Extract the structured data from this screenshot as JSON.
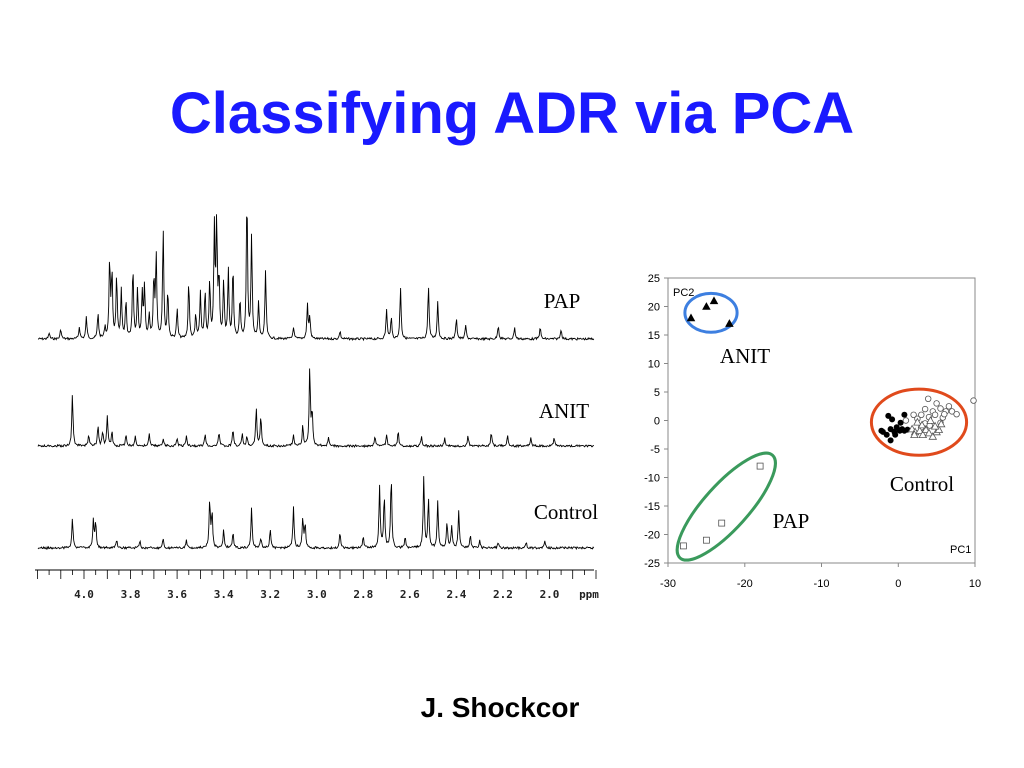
{
  "slide": {
    "title": "Classifying ADR via PCA",
    "author": "J. Shockcor"
  },
  "chart_data": [
    {
      "type": "line",
      "subtype": "nmr-spectra-stack",
      "x_axis": {
        "unit": "ppm",
        "ticks": [
          "4.0",
          "3.8",
          "3.6",
          "3.4",
          "3.2",
          "3.0",
          "2.8",
          "2.6",
          "2.4",
          "2.2",
          "2.0"
        ],
        "direction": "decreasing-left-to-right",
        "xlim": [
          4.2,
          1.8
        ]
      },
      "series": [
        {
          "name": "PAP",
          "peaks": [
            [
              4.15,
              6
            ],
            [
              4.1,
              10
            ],
            [
              4.02,
              12
            ],
            [
              3.99,
              22
            ],
            [
              3.94,
              26
            ],
            [
              3.91,
              12
            ],
            [
              3.89,
              80
            ],
            [
              3.88,
              66
            ],
            [
              3.86,
              62
            ],
            [
              3.84,
              48
            ],
            [
              3.82,
              38
            ],
            [
              3.79,
              72
            ],
            [
              3.77,
              50
            ],
            [
              3.75,
              46
            ],
            [
              3.74,
              52
            ],
            [
              3.72,
              24
            ],
            [
              3.7,
              62
            ],
            [
              3.69,
              84
            ],
            [
              3.66,
              110
            ],
            [
              3.64,
              48
            ],
            [
              3.6,
              30
            ],
            [
              3.55,
              58
            ],
            [
              3.52,
              24
            ],
            [
              3.5,
              46
            ],
            [
              3.48,
              46
            ],
            [
              3.46,
              56
            ],
            [
              3.44,
              110
            ],
            [
              3.43,
              116
            ],
            [
              3.42,
              58
            ],
            [
              3.4,
              56
            ],
            [
              3.38,
              68
            ],
            [
              3.36,
              72
            ],
            [
              3.33,
              40
            ],
            [
              3.3,
              146
            ],
            [
              3.28,
              102
            ],
            [
              3.25,
              36
            ],
            [
              3.22,
              68
            ],
            [
              3.1,
              12
            ],
            [
              3.04,
              34
            ],
            [
              3.03,
              22
            ],
            [
              2.9,
              8
            ],
            [
              2.7,
              30
            ],
            [
              2.68,
              22
            ],
            [
              2.64,
              52
            ],
            [
              2.52,
              54
            ],
            [
              2.48,
              38
            ],
            [
              2.4,
              22
            ],
            [
              2.36,
              14
            ],
            [
              2.22,
              14
            ],
            [
              2.15,
              12
            ],
            [
              2.04,
              12
            ],
            [
              1.95,
              10
            ]
          ]
        },
        {
          "name": "ANIT",
          "peaks": [
            [
              4.05,
              52
            ],
            [
              3.98,
              12
            ],
            [
              3.94,
              20
            ],
            [
              3.92,
              14
            ],
            [
              3.9,
              30
            ],
            [
              3.88,
              14
            ],
            [
              3.82,
              12
            ],
            [
              3.78,
              10
            ],
            [
              3.72,
              12
            ],
            [
              3.66,
              8
            ],
            [
              3.6,
              8
            ],
            [
              3.56,
              10
            ],
            [
              3.48,
              12
            ],
            [
              3.42,
              14
            ],
            [
              3.36,
              16
            ],
            [
              3.32,
              12
            ],
            [
              3.3,
              10
            ],
            [
              3.26,
              38
            ],
            [
              3.24,
              30
            ],
            [
              3.1,
              12
            ],
            [
              3.06,
              20
            ],
            [
              3.03,
              78
            ],
            [
              3.02,
              34
            ],
            [
              2.95,
              8
            ],
            [
              2.75,
              10
            ],
            [
              2.7,
              12
            ],
            [
              2.65,
              14
            ],
            [
              2.55,
              10
            ],
            [
              2.45,
              8
            ],
            [
              2.35,
              10
            ],
            [
              2.25,
              14
            ],
            [
              2.18,
              10
            ],
            [
              2.08,
              8
            ],
            [
              1.98,
              8
            ]
          ]
        },
        {
          "name": "Control",
          "peaks": [
            [
              4.05,
              30
            ],
            [
              3.96,
              28
            ],
            [
              3.95,
              26
            ],
            [
              3.86,
              8
            ],
            [
              3.76,
              8
            ],
            [
              3.66,
              10
            ],
            [
              3.56,
              8
            ],
            [
              3.46,
              48
            ],
            [
              3.45,
              36
            ],
            [
              3.4,
              18
            ],
            [
              3.36,
              16
            ],
            [
              3.28,
              40
            ],
            [
              3.24,
              10
            ],
            [
              3.2,
              18
            ],
            [
              3.1,
              42
            ],
            [
              3.06,
              30
            ],
            [
              3.05,
              24
            ],
            [
              2.9,
              16
            ],
            [
              2.8,
              12
            ],
            [
              2.73,
              62
            ],
            [
              2.71,
              52
            ],
            [
              2.68,
              72
            ],
            [
              2.62,
              12
            ],
            [
              2.54,
              72
            ],
            [
              2.52,
              50
            ],
            [
              2.48,
              48
            ],
            [
              2.44,
              26
            ],
            [
              2.42,
              22
            ],
            [
              2.39,
              38
            ],
            [
              2.34,
              12
            ],
            [
              2.3,
              8
            ],
            [
              2.22,
              6
            ],
            [
              2.1,
              6
            ],
            [
              2.02,
              6
            ]
          ]
        }
      ]
    },
    {
      "type": "scatter",
      "xlabel": "PC1",
      "ylabel": "PC2",
      "xlim": [
        -30,
        10
      ],
      "ylim": [
        -25,
        25
      ],
      "xticks": [
        -30,
        -20,
        -10,
        0,
        10
      ],
      "yticks": [
        25,
        20,
        15,
        10,
        5,
        0,
        -5,
        -10,
        -15,
        -20,
        -25
      ],
      "series": [
        {
          "name": "ANIT",
          "marker": "filled-triangle",
          "color": "#000000",
          "points": [
            [
              -27,
              18
            ],
            [
              -25,
              20
            ],
            [
              -24,
              21
            ],
            [
              -22,
              17
            ]
          ]
        },
        {
          "name": "PAP",
          "marker": "open-square",
          "color": "#555555",
          "points": [
            [
              -28,
              -22
            ],
            [
              -25,
              -21
            ],
            [
              -23,
              -18
            ],
            [
              -18,
              -8
            ]
          ]
        },
        {
          "name": "Control",
          "marker": "filled-circle",
          "color": "#000000",
          "points": [
            [
              -2,
              -2
            ],
            [
              -1.5,
              -2.5
            ],
            [
              -2.2,
              -1.8
            ],
            [
              -1,
              -1.5
            ],
            [
              -1.3,
              0.8
            ],
            [
              -0.5,
              -2
            ],
            [
              -0.4,
              -2.5
            ],
            [
              -0.2,
              -1.2
            ],
            [
              0.2,
              -1.8
            ],
            [
              0.5,
              -1.5
            ],
            [
              0.8,
              -1.8
            ],
            [
              1.2,
              -1.6
            ],
            [
              -1,
              -3.5
            ],
            [
              0.3,
              -0.4
            ],
            [
              0.8,
              1
            ],
            [
              -0.8,
              0.2
            ]
          ]
        },
        {
          "name": "Control",
          "marker": "open-circle",
          "color": "#555555",
          "points": [
            [
              1,
              0
            ],
            [
              2,
              1
            ],
            [
              2.5,
              0.3
            ],
            [
              3,
              1
            ],
            [
              3.5,
              -0.5
            ],
            [
              4,
              0.6
            ],
            [
              4.5,
              1.6
            ],
            [
              5,
              3
            ],
            [
              5.5,
              2.1
            ],
            [
              5.8,
              0.5
            ],
            [
              6.2,
              1.6
            ],
            [
              6.6,
              2.5
            ],
            [
              7,
              1.6
            ],
            [
              4.8,
              1
            ],
            [
              5.5,
              -0.4
            ],
            [
              3,
              -1.2
            ],
            [
              3.5,
              2
            ],
            [
              4.1,
              -0.9
            ],
            [
              6,
              1.1
            ],
            [
              7.6,
              1.1
            ],
            [
              9.8,
              3.5
            ],
            [
              3.9,
              3.8
            ]
          ]
        },
        {
          "name": "Control",
          "marker": "open-triangle",
          "color": "#555555",
          "points": [
            [
              1.8,
              -1.5
            ],
            [
              2.2,
              -2
            ],
            [
              2.8,
              -1.8
            ],
            [
              3.2,
              -2.5
            ],
            [
              3.6,
              -1.6
            ],
            [
              4,
              -2.2
            ],
            [
              4.5,
              -2.8
            ],
            [
              5,
              -2
            ],
            [
              5.3,
              -1.6
            ],
            [
              2.5,
              -0.3
            ],
            [
              4.2,
              0
            ],
            [
              5.6,
              -0.6
            ],
            [
              2.1,
              -2.5
            ],
            [
              4.8,
              -1
            ],
            [
              3.1,
              -0.8
            ]
          ]
        }
      ],
      "group_labels": [
        "ANIT",
        "PAP",
        "Control"
      ],
      "ellipses": [
        {
          "group": "ANIT",
          "color": "#3d7fe0"
        },
        {
          "group": "PAP",
          "color": "#3a9a5c"
        },
        {
          "group": "Control",
          "color": "#e04a1c"
        }
      ]
    }
  ]
}
